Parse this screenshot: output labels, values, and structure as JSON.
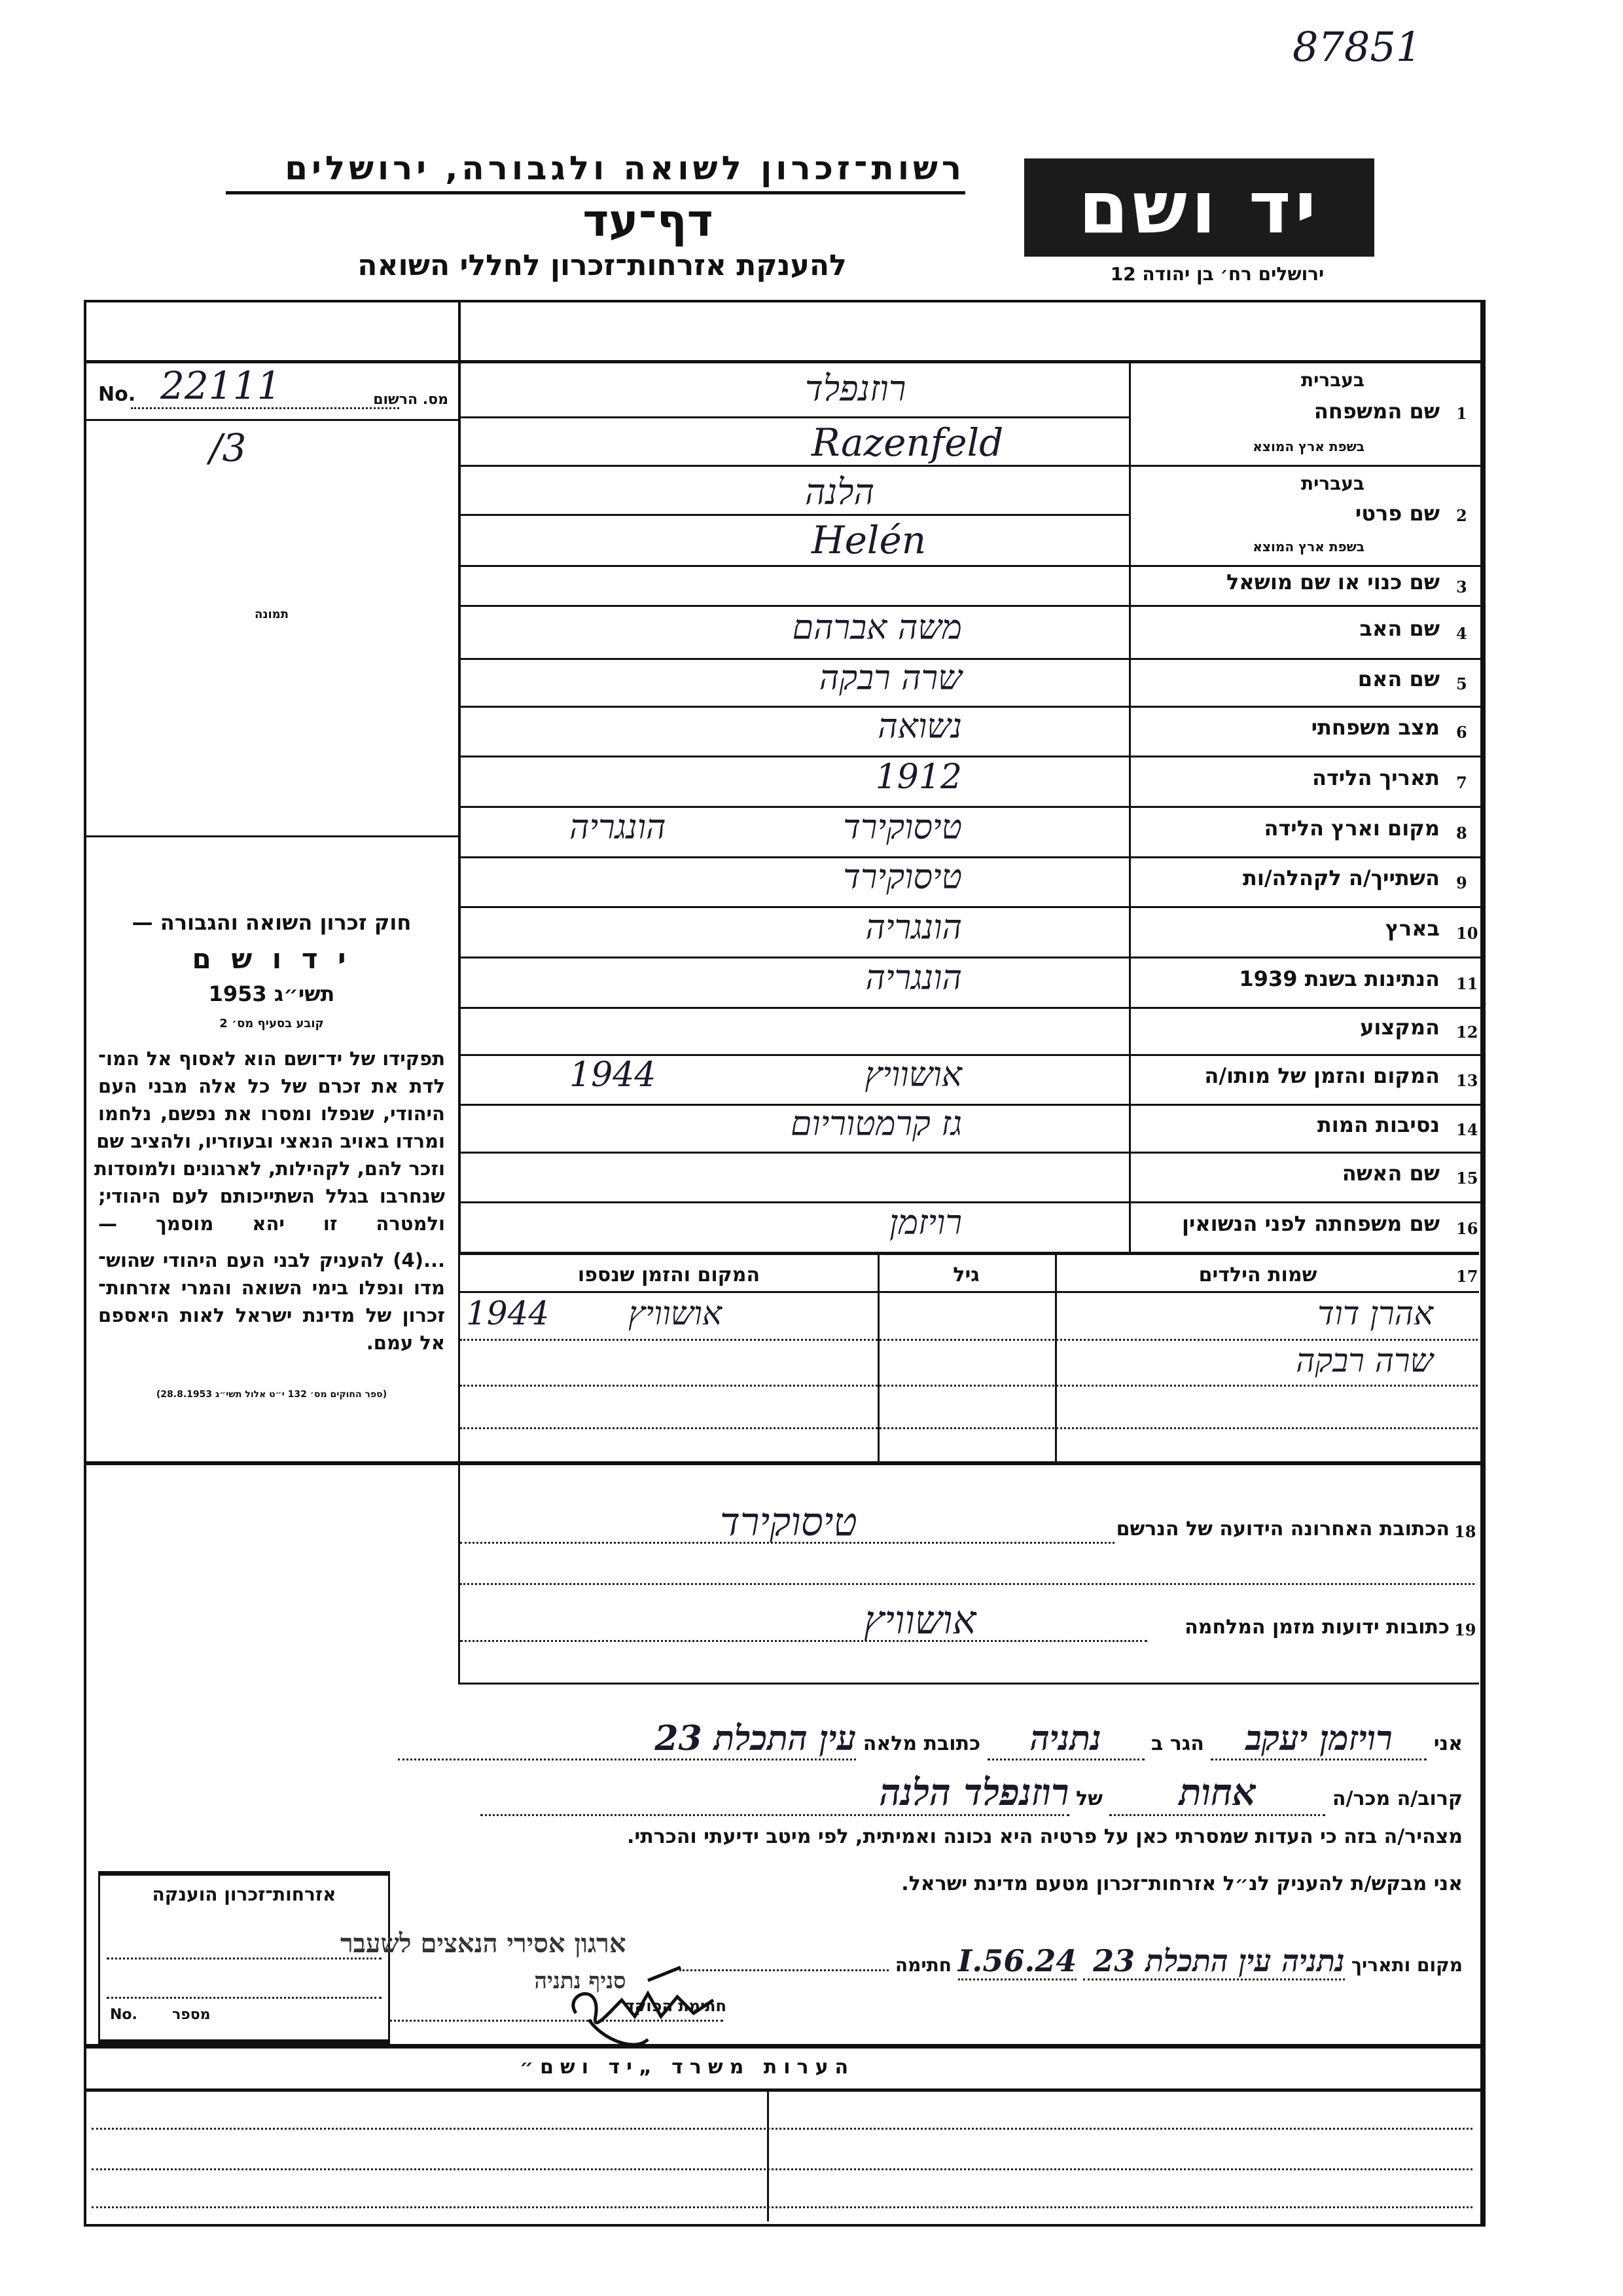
{
  "header": {
    "ref_number": "87851",
    "org_title": "רשות־זכרון לשואה ולגבורה, ירושלים",
    "form_title": "דף־עד",
    "form_subtitle": "להענקת אזרחות־זכרון לחללי השואה",
    "logo_text": "יד ושם",
    "address": "ירושלים רח׳ בן יהודה 12"
  },
  "left_panel": {
    "reg_no_label": "מס. הרשום",
    "reg_no_prefix": "No.",
    "reg_no_value": "22111",
    "reg_no_suffix": "/3",
    "photo_label": "תמונה",
    "law": {
      "title": "חוק זכרון השואה והגבורה —",
      "name": "י ד ו ש ם",
      "year": "תשי״ג 1953",
      "clause": "קובע בסעיף מס׳ 2",
      "para1": [
        "תפקידו של יד־ושם הוא לאסוף אל המו־",
        "לדת את זכרם של כל אלה מבני העם",
        "היהודי, שנפלו ומסרו את נפשם, נלחמו",
        "ומרדו באויב הנאצי ובעוזריו, ולהציב שם",
        "וזכר להם, לקהילות, לארגונים ולמוסדות",
        "שנחרבו בגלל השתייכותם לעם היהודי;",
        "ולמטרה זו יהא מוסמך —"
      ],
      "para2": [
        "...(4) להעניק לבני העם היהודי שהוש־",
        "מדו ונפלו בימי השואה והמרי אזרחות־",
        "זכרון של מדינת ישראל לאות היאספם",
        "אל עמם."
      ],
      "citation": "(ספר החוקים מס׳ 132 י״ט אלול תשי״ג 28.8.1953)"
    }
  },
  "fields": {
    "hebrew_label": "בעברית",
    "origin_label": "בשפת ארץ המוצא",
    "family_name": {
      "num": "1",
      "label": "שם המשפחה",
      "hebrew": "רוזנפלד",
      "origin": "Razenfeld"
    },
    "first_name": {
      "num": "2",
      "label": "שם פרטי",
      "hebrew": "הלנה",
      "origin": "Helén"
    },
    "rows": [
      {
        "num": "3",
        "label": "שם כנוי או שם מושאל",
        "value": "",
        "value2": ""
      },
      {
        "num": "4",
        "label": "שם האב",
        "value": "משה אברהם",
        "value2": ""
      },
      {
        "num": "5",
        "label": "שם האם",
        "value": "שרה רבקה",
        "value2": ""
      },
      {
        "num": "6",
        "label": "מצב משפחתי",
        "value": "נשואה",
        "value2": ""
      },
      {
        "num": "7",
        "label": "תאריך הלידה",
        "value": "1912",
        "value2": ""
      },
      {
        "num": "8",
        "label": "מקום וארץ הלידה",
        "value": "טיסוקירד",
        "value2": "הונגריה"
      },
      {
        "num": "9",
        "label": "השתייך/ה לקהלה/ות",
        "value": "טיסוקירד",
        "value2": ""
      },
      {
        "num": "10",
        "label": "בארץ",
        "value": "הונגריה",
        "value2": ""
      },
      {
        "num": "11",
        "label": "הנתינות בשנת 1939",
        "value": "הונגריה",
        "value2": ""
      },
      {
        "num": "12",
        "label": "המקצוע",
        "value": "",
        "value2": ""
      },
      {
        "num": "13",
        "label": "המקום והזמן של מותו/ה",
        "value": "אושוויץ",
        "value2": "1944"
      },
      {
        "num": "14",
        "label": "נסיבות המות",
        "value": "גז קרמטוריום",
        "value2": ""
      },
      {
        "num": "15",
        "label": "שם האשה",
        "value": "",
        "value2": ""
      },
      {
        "num": "16",
        "label": "שם משפחתה לפני הנשואין",
        "value": "רויזמן",
        "value2": ""
      }
    ]
  },
  "children": {
    "num": "17",
    "col_names": "שמות הילדים",
    "col_age": "גיל",
    "col_place": "המקום והזמן שנספו",
    "rows": [
      {
        "name": "אהרן דוד",
        "age": "",
        "place": "אושוויץ",
        "year": "1944"
      },
      {
        "name": "שרה רבקה",
        "age": "",
        "place": "",
        "year": ""
      },
      {
        "name": "",
        "age": "",
        "place": "",
        "year": ""
      },
      {
        "name": "",
        "age": "",
        "place": "",
        "year": ""
      }
    ]
  },
  "last_address": {
    "num": "18",
    "label": "הכתובת האחרונה הידועה של הנרשם",
    "value": "טיסוקירד"
  },
  "war_address": {
    "num": "19",
    "label": "כתובות ידועות מזמן המלחמה",
    "value": "אושוויץ"
  },
  "declaration": {
    "i_label": "אני",
    "declarant_name": "רויזמן יעקב",
    "resides_label": "הגר ב",
    "city": "נתניה",
    "full_address_label": "כתובת מלאה",
    "full_address": "עין התכלת 23",
    "relation_label": "קרוב/ה מכר/ה",
    "relation": "אחות",
    "of_label": "של",
    "relation_of": "רוזנפלד הלנה",
    "statement": "מצהיר/ה בזה כי העדות שמסרתי כאן על פרטיה היא נכונה ואמיתית, לפי מיטב ידיעתי והכרתי.",
    "request": "אני מבקש/ת להעניק לנ״ל אזרחות־זכרון מטעם מדינת ישראל.",
    "place_date_label": "מקום ותאריך",
    "place_date": "נתניה עין התכלת 23",
    "date": "24.I.56",
    "signature_label": "חתימה",
    "officer_signature_label": "חתימת הפוקד",
    "stamp_text": "ארגון אסירי הנאצים לשעבר",
    "stamp_branch": "סניף נתניה"
  },
  "award_box": {
    "title": "אזרחות־זכרון הוענקה",
    "number_label": "מספר",
    "number_prefix": "No."
  },
  "remarks": {
    "title": "הערות משרד „יד ושם״"
  }
}
